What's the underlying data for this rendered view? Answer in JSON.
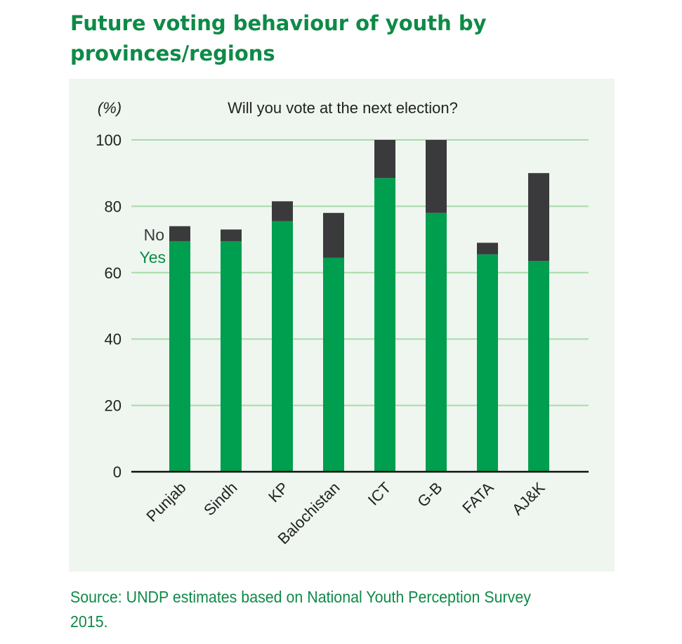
{
  "title": "Future voting behaviour of youth by provinces/regions",
  "source": {
    "label": "Source:",
    "text": " UNDP estimates based on National Youth Perception Survey 2015."
  },
  "colors": {
    "yes": "#009e4f",
    "no": "#3a3a3c",
    "panel": "#eef6ef",
    "grid": "#a9dba9",
    "accent": "#0e8a47"
  },
  "chart_data": {
    "type": "bar",
    "stacked": true,
    "title": "Will you vote at the next election?",
    "ylabel": "(%)",
    "xlabel": "",
    "ylim": [
      0,
      100
    ],
    "yticks": [
      0,
      20,
      40,
      60,
      80,
      100
    ],
    "grid": true,
    "legend_placement": "left of first bar",
    "categories": [
      "Punjab",
      "Sindh",
      "KP",
      "Balochistan",
      "ICT",
      "G-B",
      "FATA",
      "AJ&K"
    ],
    "series": [
      {
        "name": "Yes",
        "values": [
          69.5,
          69.5,
          75.5,
          64.5,
          88.5,
          78,
          65.5,
          63.5
        ]
      },
      {
        "name": "No",
        "values": [
          4.5,
          3.5,
          6,
          13.5,
          11.5,
          22,
          3.5,
          26.5
        ]
      }
    ]
  }
}
